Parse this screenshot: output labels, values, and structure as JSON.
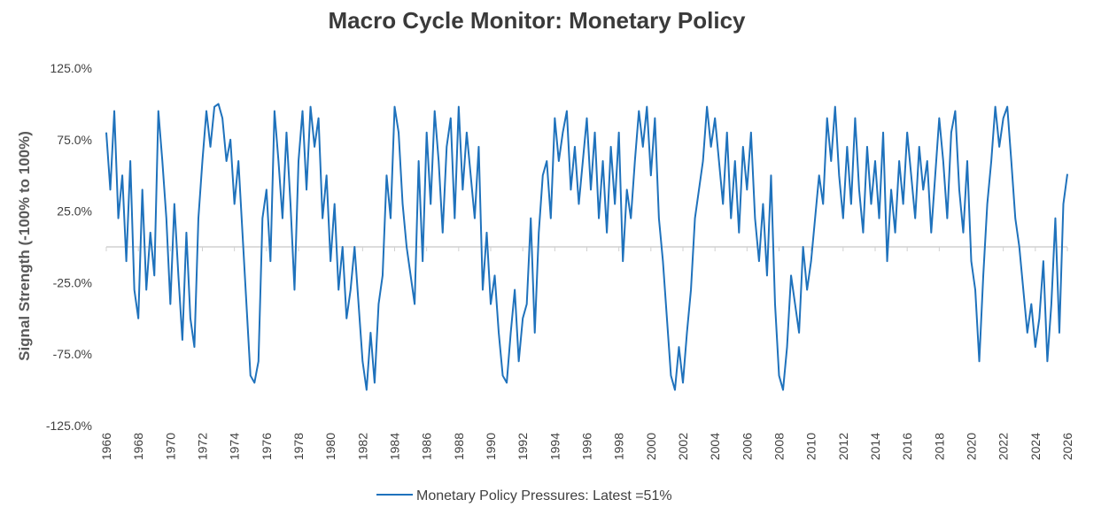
{
  "chart_data": {
    "type": "line",
    "title": "Macro Cycle Monitor: Monetary Policy",
    "y_label": "Signal Strength (-100% to 100%)",
    "x": [
      1966,
      1966.25,
      1966.5,
      1966.75,
      1967,
      1967.25,
      1967.5,
      1967.75,
      1968,
      1968.25,
      1968.5,
      1968.75,
      1969,
      1969.25,
      1969.5,
      1969.75,
      1970,
      1970.25,
      1970.5,
      1970.75,
      1971,
      1971.25,
      1971.5,
      1971.75,
      1972,
      1972.25,
      1972.5,
      1972.75,
      1973,
      1973.25,
      1973.5,
      1973.75,
      1974,
      1974.25,
      1974.5,
      1974.75,
      1975,
      1975.25,
      1975.5,
      1975.75,
      1976,
      1976.25,
      1976.5,
      1976.75,
      1977,
      1977.25,
      1977.5,
      1977.75,
      1978,
      1978.25,
      1978.5,
      1978.75,
      1979,
      1979.25,
      1979.5,
      1979.75,
      1980,
      1980.25,
      1980.5,
      1980.75,
      1981,
      1981.25,
      1981.5,
      1981.75,
      1982,
      1982.25,
      1982.5,
      1982.75,
      1983,
      1983.25,
      1983.5,
      1983.75,
      1984,
      1984.25,
      1984.5,
      1984.75,
      1985,
      1985.25,
      1985.5,
      1985.75,
      1986,
      1986.25,
      1986.5,
      1986.75,
      1987,
      1987.25,
      1987.5,
      1987.75,
      1988,
      1988.25,
      1988.5,
      1988.75,
      1989,
      1989.25,
      1989.5,
      1989.75,
      1990,
      1990.25,
      1990.5,
      1990.75,
      1991,
      1991.25,
      1991.5,
      1991.75,
      1992,
      1992.25,
      1992.5,
      1992.75,
      1993,
      1993.25,
      1993.5,
      1993.75,
      1994,
      1994.25,
      1994.5,
      1994.75,
      1995,
      1995.25,
      1995.5,
      1995.75,
      1996,
      1996.25,
      1996.5,
      1996.75,
      1997,
      1997.25,
      1997.5,
      1997.75,
      1998,
      1998.25,
      1998.5,
      1998.75,
      1999,
      1999.25,
      1999.5,
      1999.75,
      2000,
      2000.25,
      2000.5,
      2000.75,
      2001,
      2001.25,
      2001.5,
      2001.75,
      2002,
      2002.25,
      2002.5,
      2002.75,
      2003,
      2003.25,
      2003.5,
      2003.75,
      2004,
      2004.25,
      2004.5,
      2004.75,
      2005,
      2005.25,
      2005.5,
      2005.75,
      2006,
      2006.25,
      2006.5,
      2006.75,
      2007,
      2007.25,
      2007.5,
      2007.75,
      2008,
      2008.25,
      2008.5,
      2008.75,
      2009,
      2009.25,
      2009.5,
      2009.75,
      2010,
      2010.25,
      2010.5,
      2010.75,
      2011,
      2011.25,
      2011.5,
      2011.75,
      2012,
      2012.25,
      2012.5,
      2012.75,
      2013,
      2013.25,
      2013.5,
      2013.75,
      2014,
      2014.25,
      2014.5,
      2014.75,
      2015,
      2015.25,
      2015.5,
      2015.75,
      2016,
      2016.25,
      2016.5,
      2016.75,
      2017,
      2017.25,
      2017.5,
      2017.75,
      2018,
      2018.25,
      2018.5,
      2018.75,
      2019,
      2019.25,
      2019.5,
      2019.75,
      2020,
      2020.25,
      2020.5,
      2020.75,
      2021,
      2021.25,
      2021.5,
      2021.75,
      2022,
      2022.25,
      2022.5,
      2022.75,
      2023,
      2023.25,
      2023.5,
      2023.75,
      2024,
      2024.25,
      2024.5,
      2024.75,
      2025,
      2025.25,
      2025.5,
      2025.75,
      2026
    ],
    "series": [
      {
        "name": "Monetary Policy Pressures: Latest =51%",
        "color": "#1f72bc",
        "values": [
          80,
          40,
          95,
          20,
          50,
          -10,
          60,
          -30,
          -50,
          40,
          -30,
          10,
          -20,
          95,
          60,
          20,
          -40,
          30,
          -20,
          -65,
          10,
          -50,
          -70,
          20,
          60,
          95,
          70,
          98,
          100,
          90,
          60,
          75,
          30,
          60,
          10,
          -40,
          -90,
          -95,
          -80,
          20,
          40,
          -10,
          95,
          60,
          20,
          80,
          30,
          -30,
          60,
          95,
          40,
          98,
          70,
          90,
          20,
          50,
          -10,
          30,
          -30,
          0,
          -50,
          -30,
          0,
          -40,
          -80,
          -100,
          -60,
          -95,
          -40,
          -20,
          50,
          20,
          98,
          80,
          30,
          0,
          -20,
          -40,
          60,
          -10,
          80,
          30,
          95,
          60,
          10,
          70,
          90,
          20,
          98,
          40,
          80,
          50,
          20,
          70,
          -30,
          10,
          -40,
          -20,
          -60,
          -90,
          -95,
          -60,
          -30,
          -80,
          -50,
          -40,
          20,
          -60,
          10,
          50,
          60,
          20,
          90,
          60,
          80,
          95,
          40,
          70,
          30,
          60,
          90,
          40,
          80,
          20,
          60,
          10,
          70,
          30,
          80,
          -10,
          40,
          20,
          60,
          95,
          70,
          98,
          50,
          90,
          20,
          -10,
          -50,
          -90,
          -100,
          -70,
          -95,
          -60,
          -30,
          20,
          40,
          60,
          98,
          70,
          90,
          60,
          30,
          80,
          20,
          60,
          10,
          70,
          40,
          80,
          20,
          -10,
          30,
          -20,
          50,
          -40,
          -90,
          -100,
          -70,
          -20,
          -40,
          -60,
          0,
          -30,
          -10,
          20,
          50,
          30,
          90,
          60,
          98,
          50,
          20,
          70,
          30,
          90,
          40,
          10,
          70,
          30,
          60,
          20,
          80,
          -10,
          40,
          10,
          60,
          30,
          80,
          50,
          20,
          70,
          40,
          60,
          10,
          50,
          90,
          60,
          20,
          80,
          95,
          40,
          10,
          60,
          -10,
          -30,
          -80,
          -20,
          30,
          60,
          98,
          70,
          90,
          98,
          60,
          20,
          0,
          -30,
          -60,
          -40,
          -70,
          -50,
          -10,
          -80,
          -40,
          20,
          -60,
          30,
          51
        ]
      }
    ],
    "xlim": [
      1966,
      2026
    ],
    "xticks": [
      1966,
      1968,
      1970,
      1972,
      1974,
      1976,
      1978,
      1980,
      1982,
      1984,
      1986,
      1988,
      1990,
      1992,
      1994,
      1996,
      1998,
      2000,
      2002,
      2004,
      2006,
      2008,
      2010,
      2012,
      2014,
      2016,
      2018,
      2020,
      2022,
      2024,
      2026
    ],
    "ylim": [
      -125,
      125
    ],
    "yticks": [
      {
        "value": 125,
        "label": "125.0%"
      },
      {
        "value": 75,
        "label": "75.0%"
      },
      {
        "value": 25,
        "label": "25.0%"
      },
      {
        "value": -25,
        "label": "-25.0%"
      },
      {
        "value": -75,
        "label": "-75.0%"
      },
      {
        "value": -125,
        "label": "-125.0%"
      }
    ],
    "legend": "bottom"
  }
}
